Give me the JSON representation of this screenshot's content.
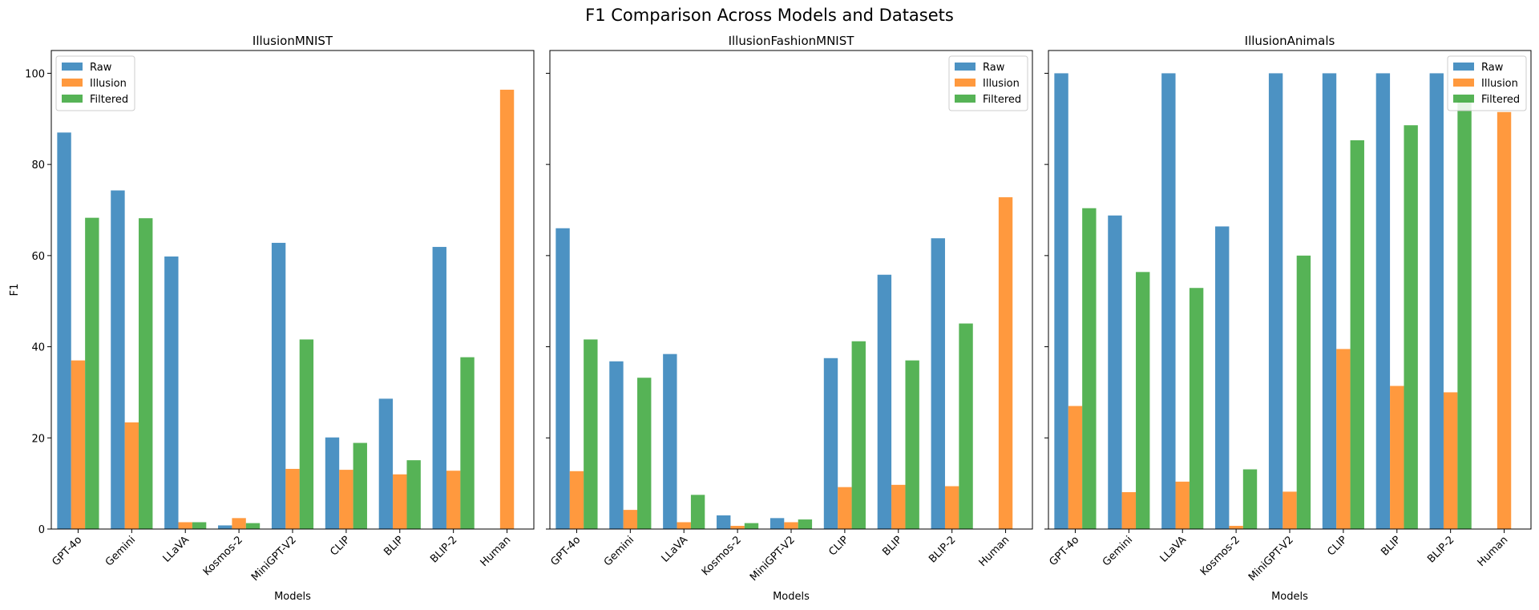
{
  "figure_title": "F1 Comparison Across Models and Datasets",
  "colors": {
    "Raw": "#1f77b4",
    "Illusion": "#ff7f0e",
    "Filtered": "#2ca02c"
  },
  "chart_data": [
    {
      "type": "bar",
      "title": "IllusionMNIST",
      "xlabel": "Models",
      "ylabel": "F1",
      "ylim": [
        0,
        105
      ],
      "yticks": [
        0,
        20,
        40,
        60,
        80,
        100
      ],
      "legend": "upper-left",
      "categories": [
        "GPT-4o",
        "Gemini",
        "LLaVA",
        "Kosmos-2",
        "MiniGPT-V2",
        "CLIP",
        "BLIP",
        "BLIP-2",
        "Human"
      ],
      "series": [
        {
          "name": "Raw",
          "values": [
            87.0,
            74.3,
            59.8,
            0.8,
            62.8,
            20.1,
            28.6,
            61.9,
            0
          ]
        },
        {
          "name": "Illusion",
          "values": [
            37.0,
            23.4,
            1.5,
            2.4,
            13.2,
            13.0,
            12.0,
            12.8,
            96.4
          ]
        },
        {
          "name": "Filtered",
          "values": [
            68.3,
            68.2,
            1.5,
            1.3,
            41.6,
            18.9,
            15.1,
            37.7,
            0
          ]
        }
      ]
    },
    {
      "type": "bar",
      "title": "IllusionFashionMNIST",
      "xlabel": "Models",
      "ylabel": "",
      "ylim": [
        0,
        105
      ],
      "yticks": [
        0,
        20,
        40,
        60,
        80,
        100
      ],
      "legend": "upper-right",
      "categories": [
        "GPT-4o",
        "Gemini",
        "LLaVA",
        "Kosmos-2",
        "MiniGPT-V2",
        "CLIP",
        "BLIP",
        "BLIP-2",
        "Human"
      ],
      "series": [
        {
          "name": "Raw",
          "values": [
            66.0,
            36.8,
            38.4,
            3.0,
            2.4,
            37.5,
            55.8,
            63.8,
            0
          ]
        },
        {
          "name": "Illusion",
          "values": [
            12.7,
            4.2,
            1.5,
            0.7,
            1.5,
            9.2,
            9.7,
            9.4,
            72.8
          ]
        },
        {
          "name": "Filtered",
          "values": [
            41.6,
            33.2,
            7.5,
            1.3,
            2.1,
            41.2,
            37.0,
            45.1,
            0
          ]
        }
      ]
    },
    {
      "type": "bar",
      "title": "IllusionAnimals",
      "xlabel": "Models",
      "ylabel": "",
      "ylim": [
        0,
        105
      ],
      "yticks": [
        0,
        20,
        40,
        60,
        80,
        100
      ],
      "legend": "upper-right",
      "categories": [
        "GPT-4o",
        "Gemini",
        "LLaVA",
        "Kosmos-2",
        "MiniGPT-V2",
        "CLIP",
        "BLIP",
        "BLIP-2",
        "Human"
      ],
      "series": [
        {
          "name": "Raw",
          "values": [
            100.0,
            68.8,
            100.0,
            66.4,
            100.0,
            100.0,
            100.0,
            100.0,
            0
          ]
        },
        {
          "name": "Illusion",
          "values": [
            27.0,
            8.1,
            10.4,
            0.7,
            8.2,
            39.5,
            31.4,
            30.0,
            91.5
          ]
        },
        {
          "name": "Filtered",
          "values": [
            70.4,
            56.4,
            52.9,
            13.1,
            60.0,
            85.3,
            88.6,
            94.1,
            0
          ]
        }
      ]
    }
  ]
}
